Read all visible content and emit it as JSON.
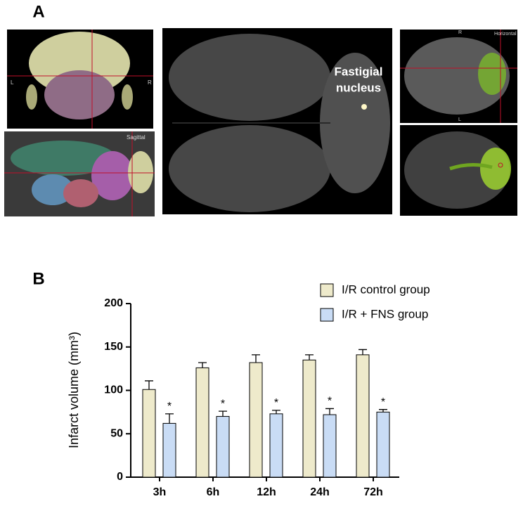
{
  "panel_a": {
    "label": "A",
    "annotation_lines": [
      "Fastigial",
      "nucleus"
    ],
    "coronal_left": "L",
    "coronal_right": "R",
    "sagittal": "Sagittal",
    "horizontal": "Horizontal",
    "horizontal_top": "R",
    "horizontal_bottom": "L"
  },
  "chart_data": {
    "type": "bar",
    "panel_label": "B",
    "y_label": "Infarct volume (mm³)",
    "categories": [
      "3h",
      "6h",
      "12h",
      "24h",
      "72h"
    ],
    "series": [
      {
        "name": "I/R control group",
        "color": "#eeeacb",
        "values": [
          101,
          126,
          132,
          135,
          141
        ],
        "errors": [
          10,
          6,
          9,
          6,
          6
        ]
      },
      {
        "name": "I/R + FNS group",
        "color": "#c9dcf5",
        "values": [
          62,
          70,
          73,
          72,
          75
        ],
        "errors": [
          11,
          6,
          4,
          7,
          3
        ],
        "significance": [
          "*",
          "*",
          "*",
          "*",
          "*"
        ]
      }
    ],
    "ylim": [
      0,
      200
    ],
    "yticks": [
      0,
      50,
      100,
      150,
      200
    ],
    "legend": "top-right"
  }
}
